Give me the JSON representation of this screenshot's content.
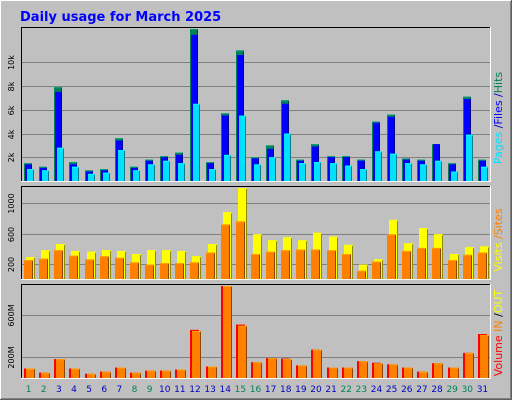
{
  "title": "Daily usage for March 2025",
  "right_labels": {
    "hits_pages": [
      {
        "text": "Pages",
        "color": "#00E0FF"
      },
      {
        "text": " /",
        "color": "#0000C0"
      },
      {
        "text": "Files",
        "color": "#0000FF"
      },
      {
        "text": " /",
        "color": "#0000C0"
      },
      {
        "text": "Hits",
        "color": "#00805C"
      }
    ],
    "visits_sites": [
      {
        "text": "Visits",
        "color": "#FFFF00"
      },
      {
        "text": " /",
        "color": "#FF8000"
      },
      {
        "text": "Sites",
        "color": "#FF8000"
      }
    ],
    "volume": [
      {
        "text": "Volume",
        "color": "#FF0000"
      },
      {
        "text": "  ",
        "color": "#000000"
      },
      {
        "text": "IN",
        "color": "#FF8000"
      },
      {
        "text": " /",
        "color": "#000000"
      },
      {
        "text": "OUT",
        "color": "#FFFF00"
      }
    ]
  },
  "colors": {
    "background": "#C0C0C0",
    "hits": "#00805C",
    "files": "#0000FF",
    "pages": "#00E0FF",
    "visits": "#FFFF00",
    "sites": "#FF8000",
    "volume": "#FF0000",
    "volume_out": "#FF8000",
    "weekend_day": "#00805C",
    "weekday": "#0000C0"
  },
  "chart_data": [
    {
      "type": "bar",
      "name": "hits-files-pages",
      "categories": [
        "1",
        "2",
        "3",
        "4",
        "5",
        "6",
        "7",
        "8",
        "9",
        "10",
        "11",
        "12",
        "13",
        "14",
        "15",
        "16",
        "17",
        "18",
        "19",
        "20",
        "21",
        "22",
        "23",
        "24",
        "25",
        "26",
        "27",
        "28",
        "29",
        "30",
        "31"
      ],
      "weekend_days": [
        1,
        2,
        8,
        9,
        15,
        16,
        22,
        23,
        29,
        30
      ],
      "yticks": [
        {
          "v": 2000,
          "label": "2k"
        },
        {
          "v": 4000,
          "label": "4k"
        },
        {
          "v": 6000,
          "label": "6k"
        },
        {
          "v": 8000,
          "label": "8k"
        },
        {
          "v": 10000,
          "label": "10k"
        }
      ],
      "ylim": [
        0,
        12800
      ],
      "series": [
        {
          "name": "Hits",
          "values": [
            1500,
            1200,
            7900,
            1600,
            900,
            1000,
            3600,
            1200,
            1800,
            2100,
            2400,
            12800,
            1600,
            5700,
            11000,
            2000,
            3000,
            6800,
            1800,
            3100,
            2100,
            2100,
            1800,
            5000,
            5600,
            1900,
            1800,
            3100,
            1500,
            7100,
            1800
          ]
        },
        {
          "name": "Files",
          "values": [
            1400,
            1100,
            7500,
            1400,
            800,
            900,
            3400,
            1100,
            1700,
            2000,
            2200,
            12300,
            1500,
            5500,
            10600,
            1900,
            2700,
            6500,
            1700,
            2900,
            2000,
            2000,
            1700,
            4900,
            5400,
            1800,
            1700,
            3100,
            1400,
            6900,
            1700
          ]
        },
        {
          "name": "Pages",
          "values": [
            1000,
            900,
            2800,
            1200,
            600,
            700,
            2600,
            900,
            1400,
            1700,
            1500,
            6500,
            1000,
            2200,
            5500,
            1400,
            2000,
            4000,
            1500,
            1600,
            1500,
            1300,
            1000,
            2500,
            2300,
            1500,
            1400,
            1700,
            800,
            3900,
            1200
          ]
        }
      ]
    },
    {
      "type": "bar",
      "name": "visits-sites",
      "categories": [
        "1",
        "2",
        "3",
        "4",
        "5",
        "6",
        "7",
        "8",
        "9",
        "10",
        "11",
        "12",
        "13",
        "14",
        "15",
        "16",
        "17",
        "18",
        "19",
        "20",
        "21",
        "22",
        "23",
        "24",
        "25",
        "26",
        "27",
        "28",
        "29",
        "30",
        "31"
      ],
      "yticks": [
        {
          "v": 200,
          "label": "200"
        },
        {
          "v": 600,
          "label": "600"
        },
        {
          "v": 1000,
          "label": "1000"
        }
      ],
      "ylim": [
        0,
        1200
      ],
      "series": [
        {
          "name": "Visits",
          "values": [
            290,
            380,
            460,
            370,
            360,
            380,
            370,
            330,
            380,
            380,
            370,
            300,
            460,
            880,
            1200,
            590,
            510,
            550,
            510,
            610,
            560,
            450,
            190,
            260,
            780,
            470,
            670,
            590,
            330,
            420,
            430
          ]
        },
        {
          "name": "Sites",
          "values": [
            250,
            270,
            380,
            310,
            260,
            300,
            280,
            220,
            190,
            210,
            210,
            220,
            350,
            720,
            760,
            330,
            360,
            380,
            390,
            390,
            380,
            330,
            110,
            230,
            590,
            370,
            410,
            410,
            250,
            320,
            350
          ]
        }
      ]
    },
    {
      "type": "bar",
      "name": "volume",
      "categories": [
        "1",
        "2",
        "3",
        "4",
        "5",
        "6",
        "7",
        "8",
        "9",
        "10",
        "11",
        "12",
        "13",
        "14",
        "15",
        "16",
        "17",
        "18",
        "19",
        "20",
        "21",
        "22",
        "23",
        "24",
        "25",
        "26",
        "27",
        "28",
        "29",
        "30",
        "31"
      ],
      "yticks": [
        {
          "v": 200,
          "label": "200M"
        },
        {
          "v": 600,
          "label": "600M"
        }
      ],
      "ylim": [
        0,
        880
      ],
      "series": [
        {
          "name": "Volume",
          "values": [
            90,
            50,
            180,
            90,
            40,
            60,
            100,
            50,
            70,
            70,
            80,
            460,
            110,
            880,
            510,
            150,
            190,
            185,
            120,
            270,
            100,
            100,
            160,
            145,
            130,
            100,
            60,
            140,
            100,
            240,
            420
          ]
        },
        {
          "name": "OUT",
          "values": [
            90,
            50,
            180,
            90,
            40,
            60,
            100,
            50,
            70,
            70,
            80,
            450,
            110,
            880,
            500,
            150,
            190,
            180,
            120,
            270,
            100,
            100,
            160,
            140,
            130,
            100,
            60,
            140,
            100,
            240,
            410
          ]
        }
      ]
    }
  ]
}
